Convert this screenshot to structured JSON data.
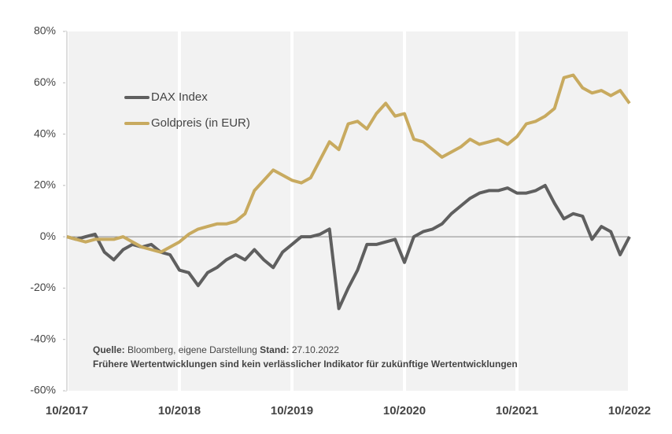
{
  "chart_data": {
    "type": "line",
    "x": [
      "10/2017",
      "11/2017",
      "12/2017",
      "01/2018",
      "02/2018",
      "03/2018",
      "04/2018",
      "05/2018",
      "06/2018",
      "07/2018",
      "08/2018",
      "09/2018",
      "10/2018",
      "11/2018",
      "12/2018",
      "01/2019",
      "02/2019",
      "03/2019",
      "04/2019",
      "05/2019",
      "06/2019",
      "07/2019",
      "08/2019",
      "09/2019",
      "10/2019",
      "11/2019",
      "12/2019",
      "01/2020",
      "02/2020",
      "03/2020",
      "04/2020",
      "05/2020",
      "06/2020",
      "07/2020",
      "08/2020",
      "09/2020",
      "10/2020",
      "11/2020",
      "12/2020",
      "01/2021",
      "02/2021",
      "03/2021",
      "04/2021",
      "05/2021",
      "06/2021",
      "07/2021",
      "08/2021",
      "09/2021",
      "10/2021",
      "11/2021",
      "12/2021",
      "01/2022",
      "02/2022",
      "03/2022",
      "04/2022",
      "05/2022",
      "06/2022",
      "07/2022",
      "08/2022",
      "09/2022",
      "10/2022"
    ],
    "series": [
      {
        "name": "DAX Index",
        "color": "#5f5f5f",
        "values": [
          0,
          -1,
          0,
          1,
          -6,
          -9,
          -5,
          -3,
          -4,
          -3,
          -6,
          -7,
          -13,
          -14,
          -19,
          -14,
          -12,
          -9,
          -7,
          -9,
          -5,
          -9,
          -12,
          -6,
          -3,
          0,
          0,
          1,
          3,
          -28,
          -20,
          -13,
          -3,
          -3,
          -2,
          -1,
          -10,
          0,
          2,
          3,
          5,
          9,
          12,
          15,
          17,
          18,
          18,
          19,
          17,
          17,
          18,
          20,
          13,
          7,
          9,
          8,
          -1,
          4,
          2,
          -7,
          0
        ]
      },
      {
        "name": "Goldpreis (in EUR)",
        "color": "#c8aa5f",
        "values": [
          0,
          -1,
          -2,
          -1,
          -1,
          -1,
          0,
          -2,
          -4,
          -5,
          -6,
          -4,
          -2,
          1,
          3,
          4,
          5,
          5,
          6,
          9,
          18,
          22,
          26,
          24,
          22,
          21,
          23,
          30,
          37,
          34,
          44,
          45,
          42,
          48,
          52,
          47,
          48,
          38,
          37,
          34,
          31,
          33,
          35,
          38,
          36,
          37,
          38,
          36,
          39,
          44,
          45,
          47,
          50,
          62,
          63,
          58,
          56,
          57,
          55,
          57,
          52
        ]
      }
    ],
    "xticks": [
      "10/2017",
      "10/2018",
      "10/2019",
      "10/2020",
      "10/2021",
      "10/2022"
    ],
    "ylim": [
      -60,
      80
    ],
    "yticks": [
      {
        "value": -60,
        "label": "-60%"
      },
      {
        "value": -40,
        "label": "-40%"
      },
      {
        "value": -20,
        "label": "-20%"
      },
      {
        "value": 0,
        "label": "0%"
      },
      {
        "value": 20,
        "label": "20%"
      },
      {
        "value": 40,
        "label": "40%"
      },
      {
        "value": 60,
        "label": "60%"
      },
      {
        "value": 80,
        "label": "80%"
      }
    ],
    "grid": true,
    "legend": "upper left",
    "source_label": "Quelle:",
    "source": "Bloomberg, eigene Darstellung",
    "stand_label": "Stand:",
    "stand": "27.10.2022",
    "disclaimer": "Frühere Wertentwicklungen sind kein verlässlicher Indikator für zukünftige Wertentwicklungen"
  }
}
